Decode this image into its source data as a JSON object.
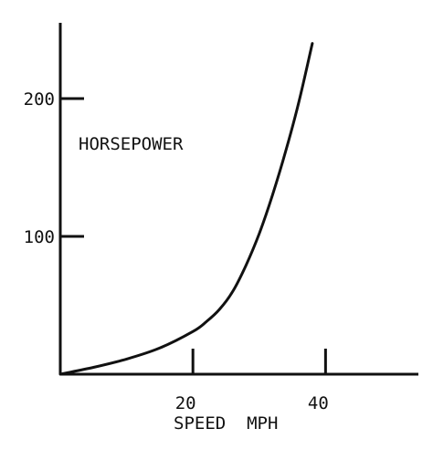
{
  "chart_data": {
    "type": "line",
    "title": "",
    "xlabel": "SPEED  MPH",
    "ylabel": "",
    "xlim": [
      0,
      54
    ],
    "ylim": [
      0,
      255
    ],
    "x_ticks": [
      {
        "value": 20,
        "label": "20"
      },
      {
        "value": 40,
        "label": "40"
      }
    ],
    "y_ticks": [
      {
        "value": 100,
        "label": "100"
      },
      {
        "value": 200,
        "label": "200"
      }
    ],
    "grid": false,
    "series": [
      {
        "name": "HORSEPOWER",
        "x": [
          0,
          5,
          10,
          15,
          20,
          22,
          24,
          26,
          28,
          30,
          32,
          34,
          36,
          38
        ],
        "y": [
          0,
          5,
          11,
          19,
          31,
          38,
          47,
          60,
          79,
          102,
          130,
          162,
          198,
          240
        ]
      }
    ],
    "colors": {
      "line": "#111111",
      "axis": "#111111"
    }
  }
}
